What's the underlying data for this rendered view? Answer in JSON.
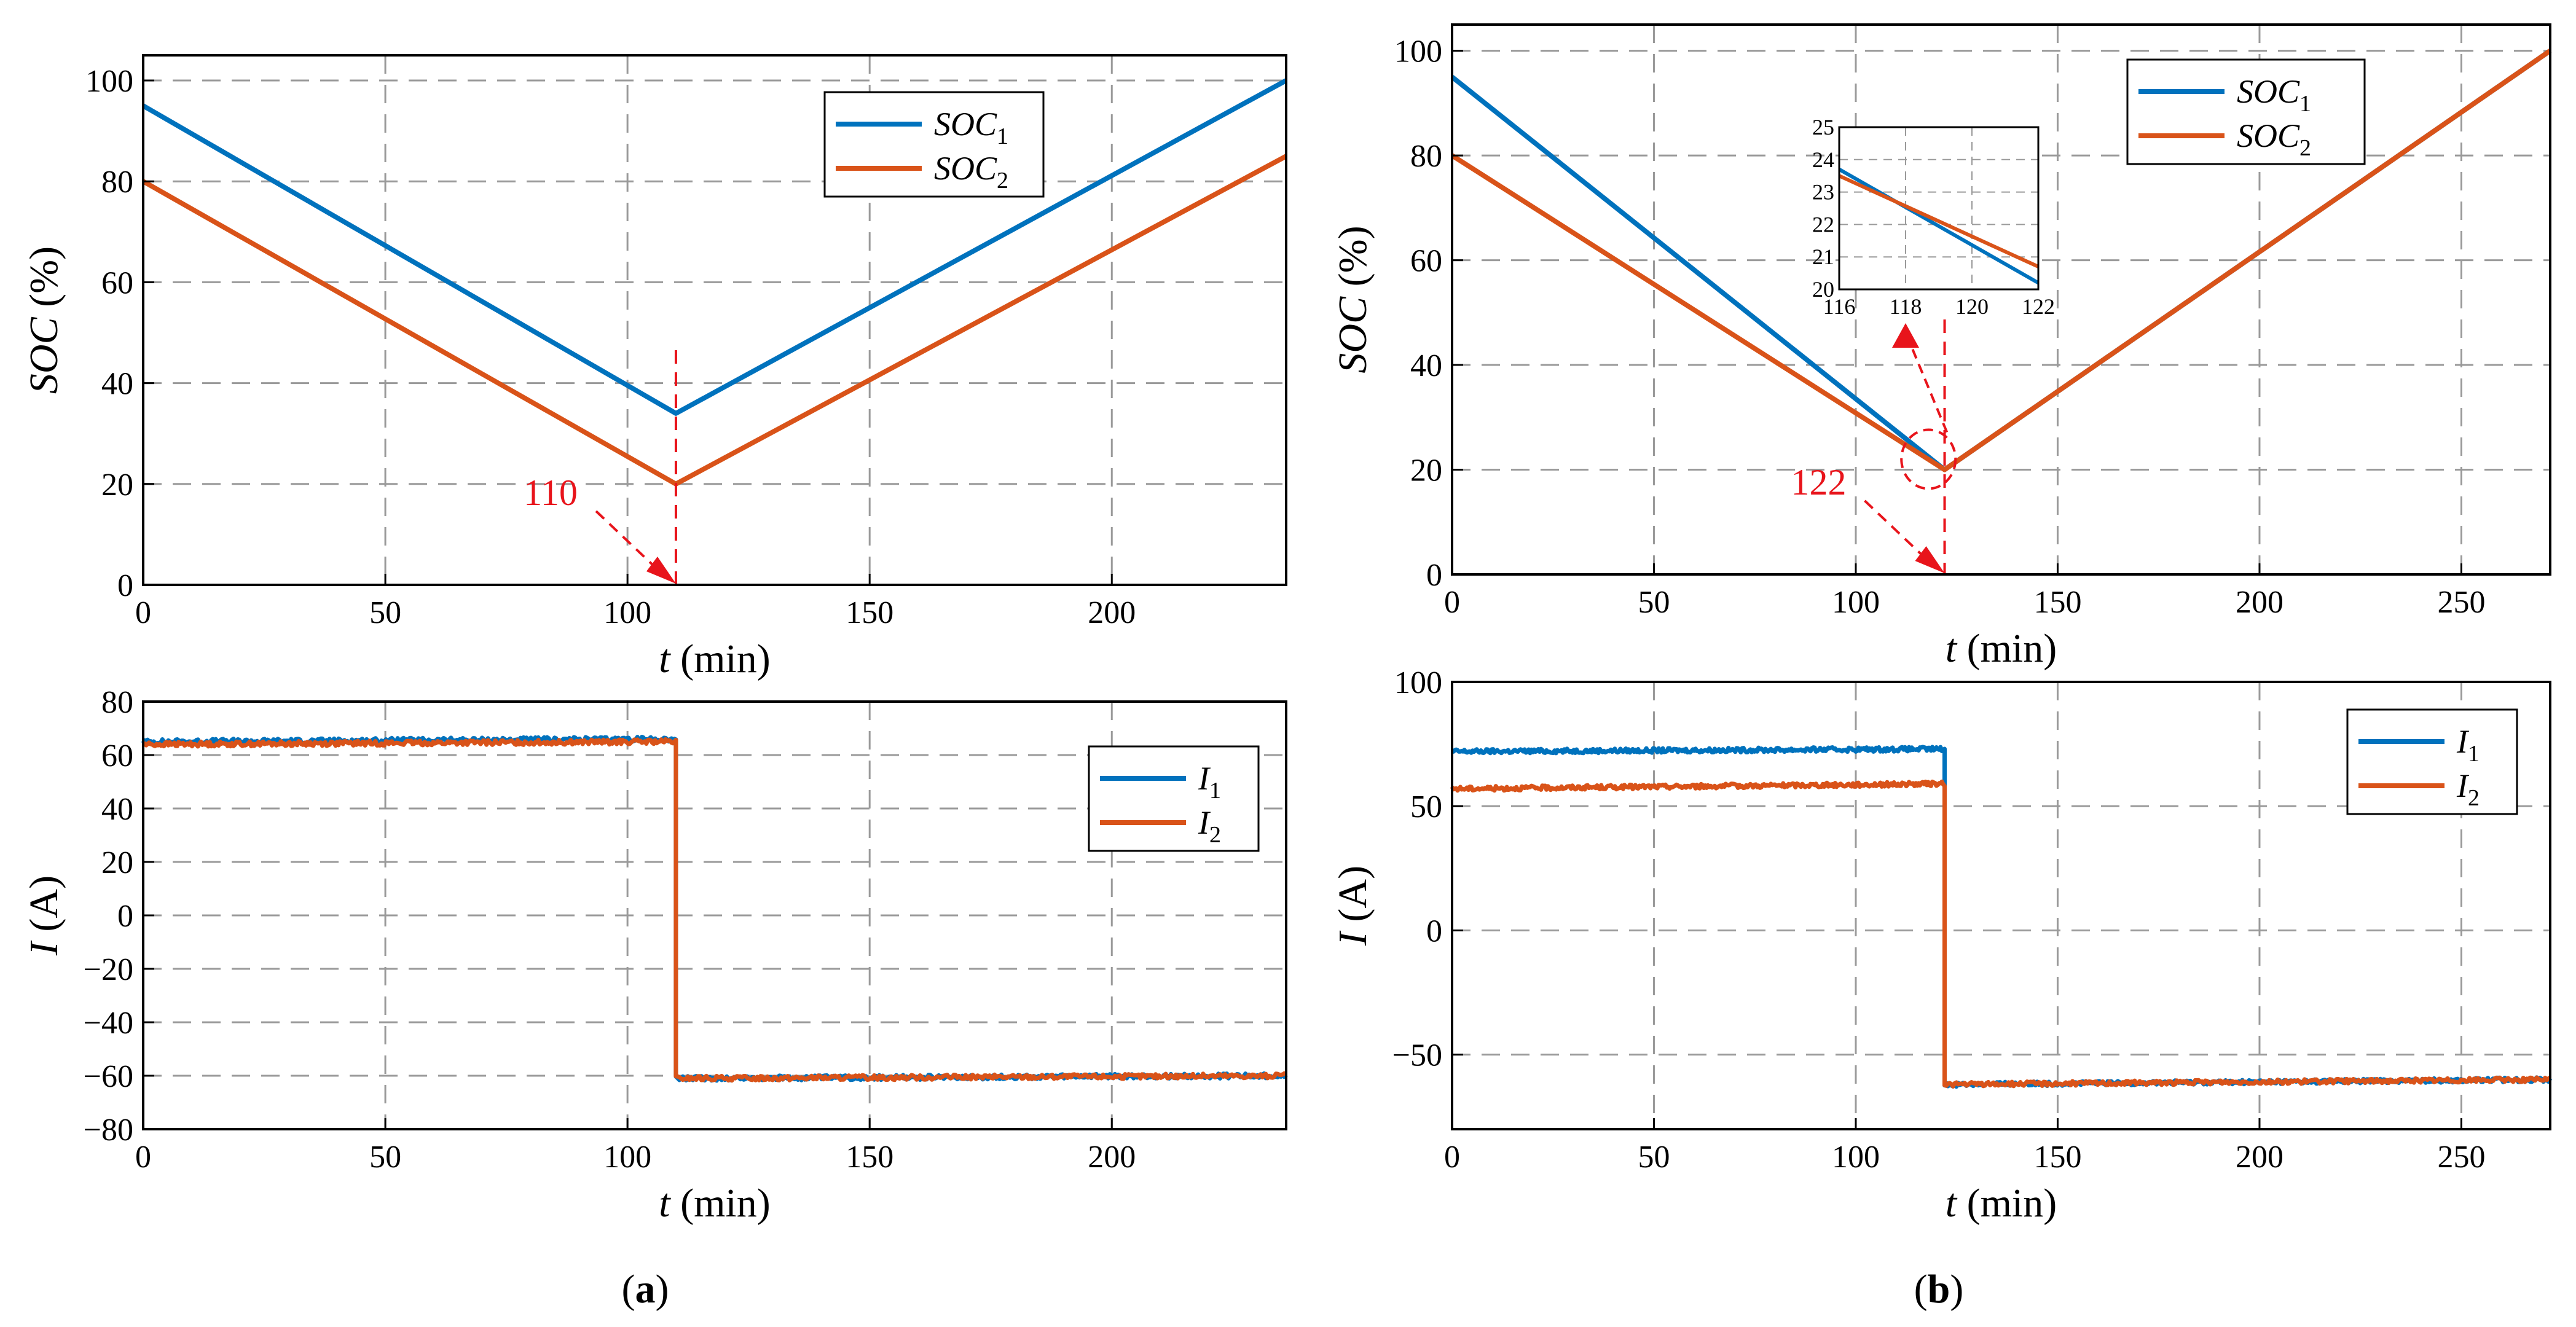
{
  "figure": {
    "colors": {
      "series1": "#0072BD",
      "series2": "#D95319",
      "annotation": "#E8141B",
      "grid": "#9a9a9a",
      "axis": "#000000"
    },
    "caption_a": {
      "open": "(",
      "letter": "a",
      "close": ")"
    },
    "caption_b": {
      "open": "(",
      "letter": "b",
      "close": ")"
    }
  },
  "chart_data": [
    {
      "id": "a_soc",
      "type": "line",
      "panel": "a",
      "ylabel": {
        "main": "SOC",
        "unit": "(%)"
      },
      "xlabel": {
        "main": "t",
        "unit": "(min)"
      },
      "xlim": [
        0,
        236
      ],
      "ylim": [
        0,
        105
      ],
      "xticks": [
        0,
        50,
        100,
        150,
        200
      ],
      "yticks": [
        0,
        20,
        40,
        60,
        80,
        100
      ],
      "series": [
        {
          "name": "SOC",
          "sub": "1",
          "x": [
            0,
            110,
            236
          ],
          "y": [
            95,
            34,
            100
          ]
        },
        {
          "name": "SOC",
          "sub": "2",
          "x": [
            0,
            110,
            236
          ],
          "y": [
            80,
            20,
            85
          ]
        }
      ],
      "legend": "top-right",
      "annotations": [
        {
          "label": "110",
          "x": 110
        }
      ]
    },
    {
      "id": "a_current",
      "type": "line",
      "panel": "a",
      "ylabel": {
        "main": "I",
        "unit": "(A)"
      },
      "xlabel": {
        "main": "t",
        "unit": "(min)"
      },
      "xlim": [
        0,
        236
      ],
      "ylim": [
        -80,
        80
      ],
      "xticks": [
        0,
        50,
        100,
        150,
        200
      ],
      "yticks": [
        -80,
        -60,
        -40,
        -20,
        0,
        20,
        40,
        60,
        80
      ],
      "ytick_labels": [
        "−80",
        "−60",
        "−40",
        "−20",
        "0",
        "20",
        "40",
        "60",
        "80"
      ],
      "series": [
        {
          "name": "I",
          "sub": "1",
          "x": [
            0,
            110,
            110,
            236
          ],
          "y": [
            65,
            66,
            -61,
            -60
          ]
        },
        {
          "name": "I",
          "sub": "2",
          "x": [
            0,
            110,
            110,
            236
          ],
          "y": [
            64,
            65,
            -61,
            -60
          ]
        }
      ],
      "legend": "right"
    },
    {
      "id": "b_soc",
      "type": "line",
      "panel": "b",
      "ylabel": {
        "main": "SOC",
        "unit": "(%)"
      },
      "xlabel": {
        "main": "t",
        "unit": "(min)"
      },
      "xlim": [
        0,
        272
      ],
      "ylim": [
        0,
        105
      ],
      "xticks": [
        0,
        50,
        100,
        150,
        200,
        250
      ],
      "yticks": [
        0,
        20,
        40,
        60,
        80,
        100
      ],
      "series": [
        {
          "name": "SOC",
          "sub": "1",
          "x": [
            0,
            122,
            272
          ],
          "y": [
            95,
            20,
            100
          ]
        },
        {
          "name": "SOC",
          "sub": "2",
          "x": [
            0,
            122,
            272
          ],
          "y": [
            80,
            20,
            100
          ]
        }
      ],
      "legend": "top-right",
      "annotations": [
        {
          "label": "122",
          "x": 122
        }
      ],
      "inset": {
        "xlim": [
          116,
          122
        ],
        "ylim": [
          20,
          25
        ],
        "xticks": [
          116,
          118,
          120,
          122
        ],
        "yticks": [
          20,
          21,
          22,
          23,
          24,
          25
        ],
        "series": [
          {
            "x": [
              116,
              122
            ],
            "y": [
              23.7,
              20.2
            ]
          },
          {
            "x": [
              116,
              122
            ],
            "y": [
              23.5,
              20.7
            ]
          }
        ]
      }
    },
    {
      "id": "b_current",
      "type": "line",
      "panel": "b",
      "ylabel": {
        "main": "I",
        "unit": "(A)"
      },
      "xlabel": {
        "main": "t",
        "unit": "(min)"
      },
      "xlim": [
        0,
        272
      ],
      "ylim": [
        -80,
        100
      ],
      "xticks": [
        0,
        50,
        100,
        150,
        200,
        250
      ],
      "yticks": [
        -50,
        0,
        50,
        100
      ],
      "ytick_labels": [
        "−50",
        "0",
        "50",
        "100"
      ],
      "series": [
        {
          "name": "I",
          "sub": "1",
          "x": [
            0,
            122,
            122,
            272
          ],
          "y": [
            72,
            73,
            -62,
            -60
          ]
        },
        {
          "name": "I",
          "sub": "2",
          "x": [
            0,
            122,
            122,
            272
          ],
          "y": [
            57,
            59,
            -62,
            -60
          ]
        }
      ],
      "legend": "top-right"
    }
  ]
}
